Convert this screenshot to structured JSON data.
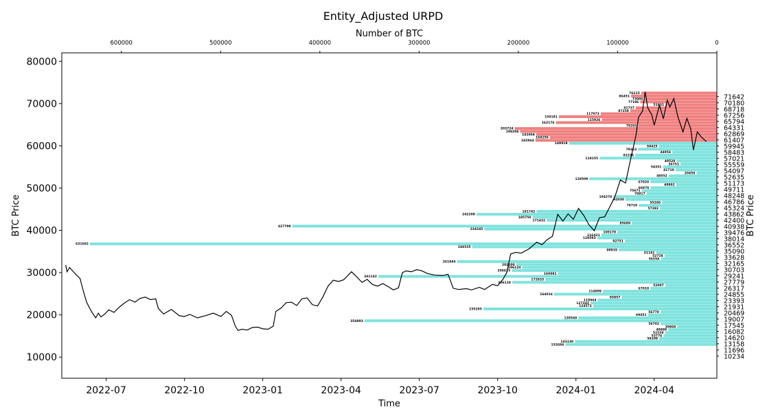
{
  "chart_data": {
    "type": "bar",
    "title": "Entity_Adjusted URPD",
    "top_xlabel": "Number of BTC",
    "xlabel": "Time",
    "ylabel": "BTC Price",
    "right_ylabel": "BTC Price",
    "ylim": [
      5000,
      82000
    ],
    "y_ticks": [
      10000,
      20000,
      30000,
      40000,
      50000,
      60000,
      70000,
      80000
    ],
    "btc_lim": [
      0,
      660000
    ],
    "btc_ticks": [
      600000,
      500000,
      400000,
      300000,
      200000,
      100000,
      0
    ],
    "time_range_months": [
      -1.7,
      23.4
    ],
    "time_ticks": [
      {
        "label": "2022-07",
        "m": 0
      },
      {
        "label": "2022-10",
        "m": 3
      },
      {
        "label": "2023-01",
        "m": 6
      },
      {
        "label": "2023-04",
        "m": 9
      },
      {
        "label": "2023-07",
        "m": 12
      },
      {
        "label": "2023-10",
        "m": 15
      },
      {
        "label": "2024-01",
        "m": 18
      },
      {
        "label": "2024-04",
        "m": 21
      }
    ],
    "colors": {
      "above": "#f08080",
      "below": "#7fe3de",
      "line": "#000000"
    },
    "current_price": 61000,
    "bucket_prices": [
      71642,
      70180,
      68718,
      67256,
      65794,
      64331,
      62869,
      61407,
      59945,
      58483,
      57021,
      55559,
      54097,
      52635,
      51173,
      49711,
      48248,
      46786,
      45324,
      43862,
      42400,
      40938,
      39476,
      38014,
      36552,
      35090,
      33628,
      32165,
      30703,
      29241,
      27779,
      26317,
      24855,
      23393,
      21931,
      20469,
      19007,
      17545,
      16082,
      14620,
      13158,
      11696,
      10234
    ],
    "bars": [
      {
        "price": 72500,
        "btc": 76215
      },
      {
        "price": 71800,
        "btc": 86451
      },
      {
        "price": 71100,
        "btc": 73006
      },
      {
        "price": 70400,
        "btc": 77186
      },
      {
        "price": 69700,
        "btc": 51831
      },
      {
        "price": 69000,
        "btc": 81737
      },
      {
        "price": 68300,
        "btc": 87258
      },
      {
        "price": 67600,
        "btc": 117073
      },
      {
        "price": 66900,
        "btc": 159181
      },
      {
        "price": 66200,
        "btc": 115926
      },
      {
        "price": 65500,
        "btc": 162176
      },
      {
        "price": 64800,
        "btc": 79293
      },
      {
        "price": 64100,
        "btc": 203724
      },
      {
        "price": 63400,
        "btc": 198206
      },
      {
        "price": 62700,
        "btc": 182004
      },
      {
        "price": 62000,
        "btc": 168250
      },
      {
        "price": 61300,
        "btc": 182864
      },
      {
        "price": 60600,
        "btc": 149018
      },
      {
        "price": 59900,
        "btc": 58425
      },
      {
        "price": 59200,
        "btc": 79363
      },
      {
        "price": 58500,
        "btc": 44954
      },
      {
        "price": 57800,
        "btc": 82226
      },
      {
        "price": 57100,
        "btc": 118155
      },
      {
        "price": 56400,
        "btc": 40520
      },
      {
        "price": 55700,
        "btc": 36751
      },
      {
        "price": 55000,
        "btc": 54351
      },
      {
        "price": 54300,
        "btc": 41710
      },
      {
        "price": 53600,
        "btc": 20458
      },
      {
        "price": 52900,
        "btc": 48552
      },
      {
        "price": 52200,
        "btc": 128509
      },
      {
        "price": 51500,
        "btc": 67020
      },
      {
        "price": 50800,
        "btc": 40992
      },
      {
        "price": 50100,
        "btc": 66876
      },
      {
        "price": 49400,
        "btc": 75671
      },
      {
        "price": 48700,
        "btc": 70817
      },
      {
        "price": 48000,
        "btc": 104278
      },
      {
        "price": 47300,
        "btc": 92030
      },
      {
        "price": 46600,
        "btc": 55286
      },
      {
        "price": 45900,
        "btc": 78729
      },
      {
        "price": 45200,
        "btc": 57393
      },
      {
        "price": 44500,
        "btc": 181742
      },
      {
        "price": 43800,
        "btc": 242209
      },
      {
        "price": 43100,
        "btc": 185750
      },
      {
        "price": 42400,
        "btc": 171432
      },
      {
        "price": 41700,
        "btc": 85689
      },
      {
        "price": 41000,
        "btc": 427798
      },
      {
        "price": 40300,
        "btc": 234245
      },
      {
        "price": 39600,
        "btc": 100178
      },
      {
        "price": 38900,
        "btc": 116421
      },
      {
        "price": 38200,
        "btc": 120593
      },
      {
        "price": 37500,
        "btc": 92751
      },
      {
        "price": 36800,
        "btc": 631692
      },
      {
        "price": 36100,
        "btc": 246535
      },
      {
        "price": 35400,
        "btc": 98919
      },
      {
        "price": 34700,
        "btc": 61181
      },
      {
        "price": 34000,
        "btc": 52728
      },
      {
        "price": 33300,
        "btc": 56558
      },
      {
        "price": 32600,
        "btc": 261844
      },
      {
        "price": 31900,
        "btc": 202200
      },
      {
        "price": 31200,
        "btc": 196124
      },
      {
        "price": 30500,
        "btc": 206625
      },
      {
        "price": 29800,
        "btc": 160081
      },
      {
        "price": 29100,
        "btc": 341142
      },
      {
        "price": 28400,
        "btc": 172833
      },
      {
        "price": 27700,
        "btc": 206118
      },
      {
        "price": 27000,
        "btc": 52007
      },
      {
        "price": 26300,
        "btc": 67010
      },
      {
        "price": 25600,
        "btc": 114809
      },
      {
        "price": 24900,
        "btc": 164016
      },
      {
        "price": 24200,
        "btc": 95857
      },
      {
        "price": 23500,
        "btc": 119964
      },
      {
        "price": 22800,
        "btc": 127242
      },
      {
        "price": 22100,
        "btc": 124571
      },
      {
        "price": 21400,
        "btc": 235295
      },
      {
        "price": 20700,
        "btc": 56770
      },
      {
        "price": 20000,
        "btc": 69451
      },
      {
        "price": 19300,
        "btc": 139549
      },
      {
        "price": 18600,
        "btc": 354893
      },
      {
        "price": 17900,
        "btc": 56702
      },
      {
        "price": 17200,
        "btc": 39968
      },
      {
        "price": 16500,
        "btc": 48998
      },
      {
        "price": 15800,
        "btc": 52228
      },
      {
        "price": 15100,
        "btc": 53776
      },
      {
        "price": 14400,
        "btc": 58109
      },
      {
        "price": 13700,
        "btc": 143130
      },
      {
        "price": 13000,
        "btc": 152684
      }
    ],
    "price_series": [
      [
        -1.55,
        31800
      ],
      [
        -1.5,
        30200
      ],
      [
        -1.4,
        31200
      ],
      [
        -1.3,
        30500
      ],
      [
        -1.15,
        29500
      ],
      [
        -1.0,
        28600
      ],
      [
        -0.9,
        26200
      ],
      [
        -0.75,
        23000
      ],
      [
        -0.6,
        21200
      ],
      [
        -0.5,
        20200
      ],
      [
        -0.4,
        19300
      ],
      [
        -0.3,
        20400
      ],
      [
        -0.2,
        19500
      ],
      [
        -0.05,
        20200
      ],
      [
        0.1,
        21200
      ],
      [
        0.3,
        20600
      ],
      [
        0.5,
        21800
      ],
      [
        0.7,
        22800
      ],
      [
        0.9,
        23600
      ],
      [
        1.1,
        23000
      ],
      [
        1.3,
        23900
      ],
      [
        1.5,
        24200
      ],
      [
        1.7,
        23600
      ],
      [
        1.9,
        23800
      ],
      [
        2.0,
        21500
      ],
      [
        2.2,
        20200
      ],
      [
        2.5,
        21300
      ],
      [
        2.8,
        19800
      ],
      [
        3.0,
        19600
      ],
      [
        3.2,
        20100
      ],
      [
        3.5,
        19300
      ],
      [
        3.8,
        19800
      ],
      [
        4.1,
        20400
      ],
      [
        4.4,
        19600
      ],
      [
        4.6,
        20800
      ],
      [
        4.8,
        19900
      ],
      [
        4.95,
        17300
      ],
      [
        5.05,
        16300
      ],
      [
        5.2,
        16600
      ],
      [
        5.4,
        16400
      ],
      [
        5.6,
        17000
      ],
      [
        5.8,
        17100
      ],
      [
        6.0,
        16700
      ],
      [
        6.2,
        16600
      ],
      [
        6.4,
        17300
      ],
      [
        6.5,
        20800
      ],
      [
        6.7,
        21600
      ],
      [
        6.9,
        22900
      ],
      [
        7.1,
        23000
      ],
      [
        7.3,
        22200
      ],
      [
        7.5,
        23800
      ],
      [
        7.7,
        24000
      ],
      [
        7.9,
        22400
      ],
      [
        8.1,
        22100
      ],
      [
        8.3,
        24200
      ],
      [
        8.5,
        26800
      ],
      [
        8.7,
        28200
      ],
      [
        8.9,
        27900
      ],
      [
        9.1,
        28300
      ],
      [
        9.4,
        30200
      ],
      [
        9.6,
        29000
      ],
      [
        9.8,
        27700
      ],
      [
        10.0,
        28400
      ],
      [
        10.2,
        27200
      ],
      [
        10.4,
        26800
      ],
      [
        10.6,
        27400
      ],
      [
        10.8,
        26700
      ],
      [
        11.0,
        25900
      ],
      [
        11.2,
        26400
      ],
      [
        11.35,
        30000
      ],
      [
        11.5,
        30400
      ],
      [
        11.7,
        30200
      ],
      [
        11.9,
        30700
      ],
      [
        12.1,
        30400
      ],
      [
        12.3,
        29800
      ],
      [
        12.6,
        29400
      ],
      [
        12.9,
        29300
      ],
      [
        13.1,
        29600
      ],
      [
        13.3,
        26300
      ],
      [
        13.5,
        26000
      ],
      [
        13.8,
        26200
      ],
      [
        14.0,
        25900
      ],
      [
        14.3,
        26500
      ],
      [
        14.5,
        26000
      ],
      [
        14.8,
        27200
      ],
      [
        15.0,
        26900
      ],
      [
        15.2,
        28400
      ],
      [
        15.35,
        30000
      ],
      [
        15.5,
        34400
      ],
      [
        15.7,
        34800
      ],
      [
        15.9,
        34600
      ],
      [
        16.2,
        35600
      ],
      [
        16.5,
        37200
      ],
      [
        16.7,
        36600
      ],
      [
        16.9,
        37800
      ],
      [
        17.1,
        38600
      ],
      [
        17.3,
        43800
      ],
      [
        17.5,
        42200
      ],
      [
        17.7,
        43900
      ],
      [
        17.9,
        42600
      ],
      [
        18.1,
        45200
      ],
      [
        18.3,
        43500
      ],
      [
        18.5,
        41300
      ],
      [
        18.7,
        39900
      ],
      [
        18.9,
        43000
      ],
      [
        19.1,
        43200
      ],
      [
        19.3,
        45600
      ],
      [
        19.5,
        48100
      ],
      [
        19.7,
        51900
      ],
      [
        19.9,
        51200
      ],
      [
        20.1,
        57000
      ],
      [
        20.3,
        62500
      ],
      [
        20.4,
        66800
      ],
      [
        20.55,
        68200
      ],
      [
        20.65,
        72800
      ],
      [
        20.75,
        69000
      ],
      [
        20.9,
        67400
      ],
      [
        21.0,
        64900
      ],
      [
        21.2,
        69600
      ],
      [
        21.35,
        66400
      ],
      [
        21.5,
        70800
      ],
      [
        21.6,
        69200
      ],
      [
        21.75,
        71200
      ],
      [
        21.9,
        67000
      ],
      [
        22.1,
        63300
      ],
      [
        22.25,
        66500
      ],
      [
        22.4,
        64000
      ],
      [
        22.5,
        59000
      ],
      [
        22.65,
        63300
      ],
      [
        22.8,
        62100
      ],
      [
        23.0,
        61000
      ]
    ]
  }
}
